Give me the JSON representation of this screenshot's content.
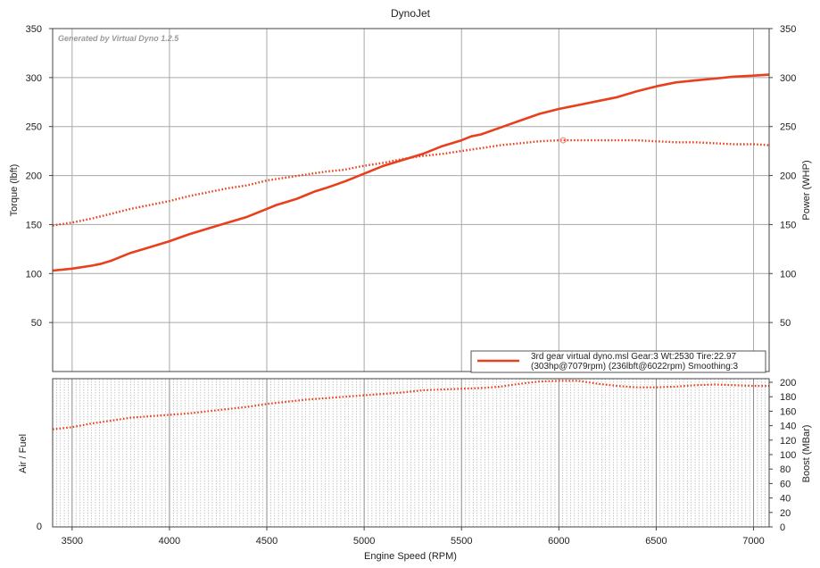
{
  "chart_data": {
    "type": "line",
    "title": "DynoJet",
    "watermark": "Generated by Virtual Dyno 1.2.5",
    "xlabel": "Engine Speed (RPM)",
    "xlim": [
      3400,
      7080
    ],
    "x_ticks": [
      "3500",
      "4000",
      "4500",
      "5000",
      "5500",
      "6000",
      "6500",
      "7000"
    ],
    "x_tick_values": [
      3500,
      4000,
      4500,
      5000,
      5500,
      6000,
      6500,
      7000
    ],
    "top": {
      "ylabel_left": "Torque (lbft)",
      "ylabel_right": "Power (WHP)",
      "ylim": [
        0,
        350
      ],
      "y_ticks": [
        "50",
        "100",
        "150",
        "200",
        "250",
        "300",
        "350"
      ],
      "y_tick_values": [
        50,
        100,
        150,
        200,
        250,
        300,
        350
      ],
      "grid": true,
      "series": [
        {
          "role": "power",
          "style": "solid",
          "color": "#e8401c",
          "x": [
            3400,
            3500,
            3600,
            3650,
            3700,
            3750,
            3800,
            3900,
            4000,
            4100,
            4200,
            4300,
            4400,
            4450,
            4500,
            4550,
            4600,
            4650,
            4700,
            4750,
            4800,
            4900,
            5000,
            5100,
            5200,
            5300,
            5400,
            5500,
            5550,
            5600,
            5700,
            5800,
            5900,
            6000,
            6100,
            6200,
            6300,
            6400,
            6500,
            6600,
            6700,
            6800,
            6900,
            7000,
            7079
          ],
          "y": [
            103,
            105,
            108,
            110,
            113,
            117,
            121,
            127,
            133,
            140,
            146,
            152,
            158,
            162,
            166,
            170,
            173,
            176,
            180,
            184,
            187,
            194,
            202,
            210,
            216,
            222,
            230,
            236,
            240,
            242,
            249,
            256,
            263,
            268,
            272,
            276,
            280,
            286,
            291,
            295,
            297,
            299,
            301,
            302,
            303
          ]
        },
        {
          "role": "torque",
          "style": "dotted",
          "color": "#e8401c",
          "x": [
            3400,
            3500,
            3600,
            3700,
            3800,
            3900,
            4000,
            4100,
            4200,
            4300,
            4400,
            4500,
            4600,
            4700,
            4800,
            4900,
            5000,
            5100,
            5200,
            5300,
            5400,
            5500,
            5600,
            5700,
            5800,
            5900,
            6000,
            6022,
            6100,
            6200,
            6300,
            6400,
            6500,
            6600,
            6700,
            6800,
            6900,
            7000,
            7079
          ],
          "y": [
            149,
            152,
            156,
            161,
            166,
            170,
            174,
            179,
            183,
            187,
            190,
            195,
            198,
            201,
            204,
            206,
            210,
            213,
            217,
            220,
            222,
            225,
            228,
            231,
            233,
            235,
            236,
            236,
            236,
            236,
            236,
            236,
            235,
            234,
            234,
            233,
            232,
            232,
            231
          ]
        }
      ],
      "peak_marker": {
        "x": 6022,
        "y": 236
      },
      "legend": {
        "position": "bottom-right",
        "line1": "3rd gear virtual dyno.msl Gear:3 Wt:2530 Tire:22.97",
        "line2": "(303hp@7079rpm) (236lbft@6022rpm) Smoothing:3"
      }
    },
    "bottom": {
      "ylabel_left": "Air / Fuel",
      "ylabel_right": "Boost (MBar)",
      "left_ticks": [
        "0"
      ],
      "right_ylim": [
        0,
        205
      ],
      "right_ticks": [
        "0",
        "20",
        "40",
        "60",
        "80",
        "100",
        "120",
        "140",
        "160",
        "180",
        "200"
      ],
      "right_tick_values": [
        0,
        20,
        40,
        60,
        80,
        100,
        120,
        140,
        160,
        180,
        200
      ],
      "series": [
        {
          "role": "boost",
          "style": "dotted",
          "color": "#e8401c",
          "x": [
            3400,
            3500,
            3600,
            3700,
            3800,
            3900,
            4000,
            4100,
            4200,
            4300,
            4400,
            4500,
            4600,
            4700,
            4800,
            4900,
            5000,
            5100,
            5200,
            5300,
            5400,
            5500,
            5600,
            5700,
            5800,
            5900,
            6000,
            6100,
            6200,
            6300,
            6400,
            6500,
            6600,
            6700,
            6800,
            6900,
            7000,
            7079
          ],
          "y": [
            135,
            138,
            143,
            147,
            151,
            153,
            155,
            157,
            160,
            163,
            166,
            170,
            173,
            176,
            178,
            180,
            182,
            184,
            186,
            189,
            190,
            191,
            192,
            194,
            198,
            201,
            202,
            202,
            198,
            195,
            193,
            193,
            194,
            196,
            197,
            196,
            195,
            195
          ]
        }
      ]
    }
  }
}
